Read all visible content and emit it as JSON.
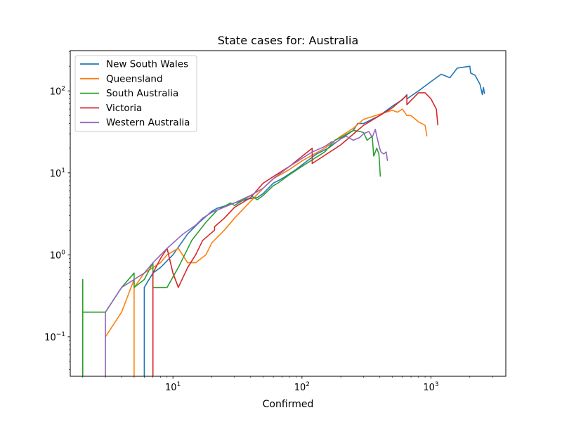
{
  "chart_data": {
    "type": "line",
    "title": "State cases for: Australia",
    "xlabel": "Confirmed",
    "ylabel": "",
    "xscale": "log",
    "yscale": "log",
    "xlim": [
      1.6,
      3800
    ],
    "ylim": [
      0.033,
      310
    ],
    "grid": false,
    "legend_position": "top-left",
    "x_ticks": [
      {
        "value": 10,
        "base": "10",
        "exp": "1"
      },
      {
        "value": 100,
        "base": "10",
        "exp": "2"
      },
      {
        "value": 1000,
        "base": "10",
        "exp": "3"
      }
    ],
    "y_ticks": [
      {
        "value": 0.1,
        "base": "10",
        "exp": "−1"
      },
      {
        "value": 1,
        "base": "10",
        "exp": "0"
      },
      {
        "value": 10,
        "base": "10",
        "exp": "1"
      },
      {
        "value": 100,
        "base": "10",
        "exp": "2"
      }
    ],
    "series": [
      {
        "name": "New South Wales",
        "color": "#1f77b4",
        "points": [
          [
            6,
            0.033
          ],
          [
            6,
            0.4
          ],
          [
            7,
            0.6
          ],
          [
            8,
            0.7
          ],
          [
            10,
            1.0
          ],
          [
            13,
            1.8
          ],
          [
            16,
            2.5
          ],
          [
            20,
            3.4
          ],
          [
            22,
            3.7
          ],
          [
            26,
            4.0
          ],
          [
            30,
            4.3
          ],
          [
            38,
            4.8
          ],
          [
            45,
            5.0
          ],
          [
            50,
            5.6
          ],
          [
            60,
            7.5
          ],
          [
            70,
            8.5
          ],
          [
            90,
            11
          ],
          [
            110,
            14
          ],
          [
            130,
            17
          ],
          [
            160,
            20
          ],
          [
            200,
            26
          ],
          [
            250,
            33
          ],
          [
            270,
            40
          ],
          [
            300,
            40
          ],
          [
            400,
            50
          ],
          [
            500,
            65
          ],
          [
            600,
            78
          ],
          [
            650,
            90
          ],
          [
            650,
            80
          ],
          [
            800,
            100
          ],
          [
            1000,
            130
          ],
          [
            1200,
            160
          ],
          [
            1400,
            145
          ],
          [
            1600,
            190
          ],
          [
            2000,
            200
          ],
          [
            2030,
            165
          ],
          [
            2200,
            155
          ],
          [
            2400,
            120
          ],
          [
            2500,
            90
          ],
          [
            2550,
            110
          ],
          [
            2600,
            92
          ]
        ]
      },
      {
        "name": "Queensland",
        "color": "#ff7f0e",
        "points": [
          [
            3,
            0.1
          ],
          [
            4,
            0.2
          ],
          [
            5,
            0.5
          ],
          [
            5,
            0.033
          ],
          [
            5,
            0.4
          ],
          [
            6,
            0.6
          ],
          [
            7,
            0.7
          ],
          [
            8,
            0.8
          ],
          [
            9,
            1.0
          ],
          [
            11,
            1.2
          ],
          [
            13,
            0.8
          ],
          [
            15,
            0.8
          ],
          [
            18,
            1.0
          ],
          [
            20,
            1.4
          ],
          [
            25,
            2.0
          ],
          [
            30,
            2.8
          ],
          [
            40,
            4.5
          ],
          [
            50,
            6.5
          ],
          [
            60,
            8.5
          ],
          [
            80,
            11
          ],
          [
            100,
            14
          ],
          [
            150,
            20
          ],
          [
            200,
            28
          ],
          [
            250,
            35
          ],
          [
            300,
            45
          ],
          [
            400,
            52
          ],
          [
            500,
            58
          ],
          [
            550,
            55
          ],
          [
            600,
            60
          ],
          [
            650,
            50
          ],
          [
            700,
            50
          ],
          [
            800,
            42
          ],
          [
            900,
            38
          ],
          [
            930,
            28
          ]
        ]
      },
      {
        "name": "South Australia",
        "color": "#2ca02c",
        "points": [
          [
            2,
            0.033
          ],
          [
            2,
            0.5
          ],
          [
            2,
            0.05
          ],
          [
            2,
            0.2
          ],
          [
            3,
            0.2
          ],
          [
            4,
            0.4
          ],
          [
            5,
            0.6
          ],
          [
            5,
            0.4
          ],
          [
            6,
            0.5
          ],
          [
            7,
            0.8
          ],
          [
            7,
            0.4
          ],
          [
            9,
            0.4
          ],
          [
            11,
            0.7
          ],
          [
            14,
            1.5
          ],
          [
            18,
            2.5
          ],
          [
            22,
            3.5
          ],
          [
            28,
            4.3
          ],
          [
            30,
            4.0
          ],
          [
            40,
            5.3
          ],
          [
            45,
            4.7
          ],
          [
            50,
            5.3
          ],
          [
            60,
            7.0
          ],
          [
            65,
            7.5
          ],
          [
            80,
            9.5
          ],
          [
            100,
            12
          ],
          [
            150,
            18
          ],
          [
            180,
            25
          ],
          [
            200,
            27
          ],
          [
            250,
            33
          ],
          [
            280,
            32
          ],
          [
            300,
            31
          ],
          [
            320,
            25
          ],
          [
            350,
            28
          ],
          [
            360,
            16
          ],
          [
            380,
            20
          ],
          [
            395,
            17
          ],
          [
            405,
            9
          ]
        ]
      },
      {
        "name": "Victoria",
        "color": "#d62728",
        "points": [
          [
            7,
            0.033
          ],
          [
            7,
            0.6
          ],
          [
            8,
            0.9
          ],
          [
            9,
            1.2
          ],
          [
            10,
            0.6
          ],
          [
            11,
            0.4
          ],
          [
            13,
            0.7
          ],
          [
            15,
            1.0
          ],
          [
            17,
            1.5
          ],
          [
            21,
            2.0
          ],
          [
            21,
            2.2
          ],
          [
            25,
            2.8
          ],
          [
            30,
            3.8
          ],
          [
            40,
            5.0
          ],
          [
            50,
            7.5
          ],
          [
            60,
            9.0
          ],
          [
            80,
            12
          ],
          [
            120,
            20
          ],
          [
            120,
            13
          ],
          [
            200,
            22
          ],
          [
            300,
            38
          ],
          [
            400,
            50
          ],
          [
            500,
            62
          ],
          [
            650,
            88
          ],
          [
            650,
            68
          ],
          [
            800,
            95
          ],
          [
            900,
            95
          ],
          [
            1000,
            80
          ],
          [
            1100,
            60
          ],
          [
            1130,
            38
          ]
        ]
      },
      {
        "name": "Western Australia",
        "color": "#9467bd",
        "points": [
          [
            3,
            0.033
          ],
          [
            3,
            0.2
          ],
          [
            4,
            0.4
          ],
          [
            5,
            0.5
          ],
          [
            6,
            0.6
          ],
          [
            7,
            0.8
          ],
          [
            9,
            1.2
          ],
          [
            12,
            1.8
          ],
          [
            15,
            2.3
          ],
          [
            17,
            2.8
          ],
          [
            20,
            3.3
          ],
          [
            30,
            4.3
          ],
          [
            40,
            5.3
          ],
          [
            50,
            6.5
          ],
          [
            60,
            8.5
          ],
          [
            80,
            12
          ],
          [
            100,
            15
          ],
          [
            120,
            18
          ],
          [
            150,
            21
          ],
          [
            170,
            24
          ],
          [
            180,
            23
          ],
          [
            200,
            26
          ],
          [
            220,
            28
          ],
          [
            250,
            25
          ],
          [
            280,
            27
          ],
          [
            300,
            30
          ],
          [
            330,
            32
          ],
          [
            350,
            27
          ],
          [
            370,
            34
          ],
          [
            380,
            28
          ],
          [
            400,
            20
          ],
          [
            410,
            18
          ],
          [
            430,
            17
          ],
          [
            450,
            18
          ],
          [
            460,
            14
          ]
        ]
      }
    ]
  }
}
